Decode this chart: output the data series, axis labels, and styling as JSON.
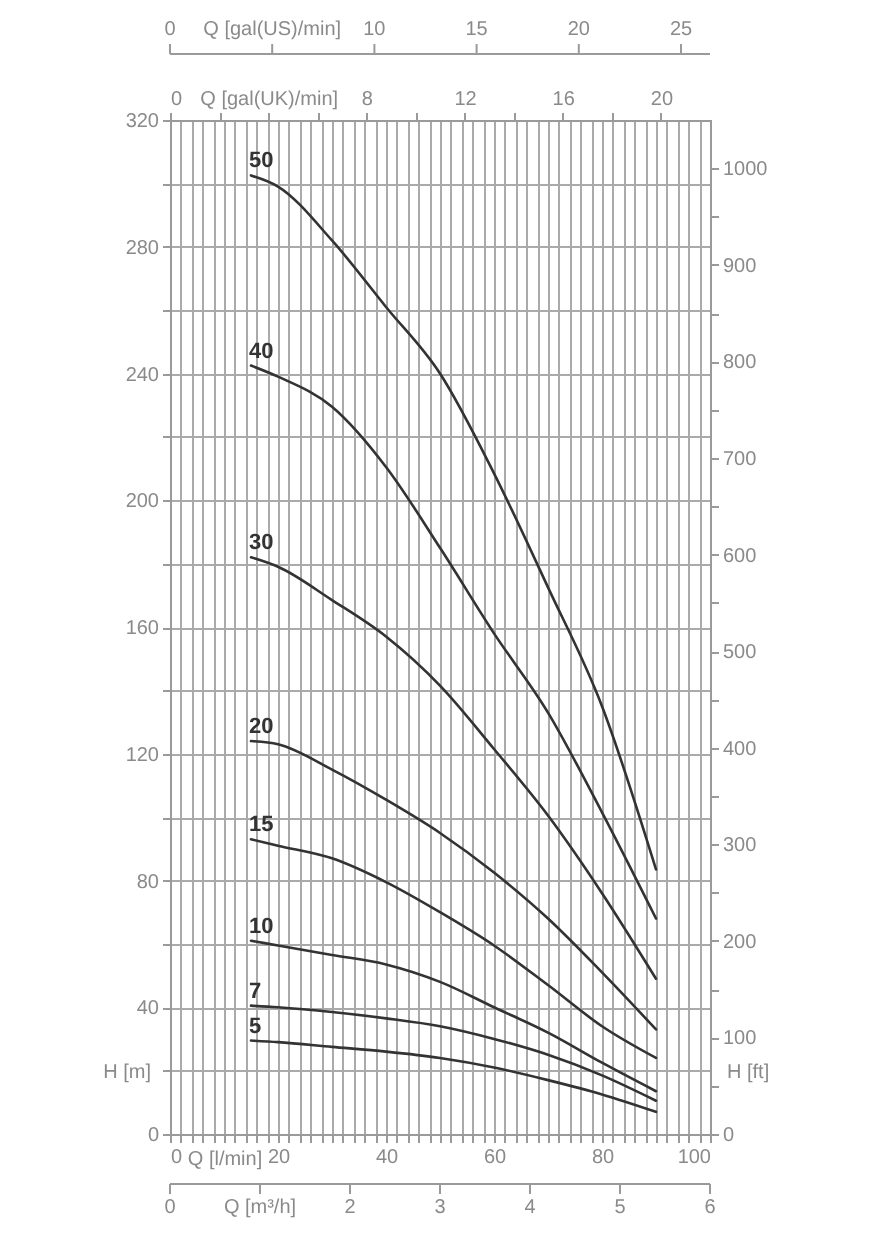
{
  "chart_data": {
    "type": "line",
    "xlabel": "Q [l/min]",
    "ylabel": "H [m]",
    "y2label": "H [ft]",
    "x2label": "Q [gal(UK)/min]",
    "x": [
      15,
      20,
      30,
      40,
      50,
      60,
      70,
      80,
      90
    ],
    "xlim": [
      0,
      100
    ],
    "xticks": [
      0,
      {
        "value": 2,
        "label": null
      },
      {
        "value": 4,
        "label": null
      },
      {
        "value": 6,
        "label": null
      },
      {
        "value": 8,
        "label": null
      },
      {
        "value": 10,
        "label": null
      },
      {
        "value": 12,
        "label": null
      },
      {
        "value": 14,
        "label": null
      },
      {
        "value": 16,
        "label": null
      },
      {
        "value": 18,
        "label": null
      },
      20,
      {
        "value": 22,
        "label": null
      },
      {
        "value": 24,
        "label": null
      },
      {
        "value": 26,
        "label": null
      },
      {
        "value": 28,
        "label": null
      },
      {
        "value": 30,
        "label": null
      },
      {
        "value": 32,
        "label": null
      },
      {
        "value": 34,
        "label": null
      },
      {
        "value": 36,
        "label": null
      },
      {
        "value": 38,
        "label": null
      },
      40,
      {
        "value": 42,
        "label": null
      },
      {
        "value": 44,
        "label": null
      },
      {
        "value": 46,
        "label": null
      },
      {
        "value": 48,
        "label": null
      },
      {
        "value": 50,
        "label": null
      },
      {
        "value": 52,
        "label": null
      },
      {
        "value": 54,
        "label": null
      },
      {
        "value": 56,
        "label": null
      },
      {
        "value": 58,
        "label": null
      },
      60,
      {
        "value": 62,
        "label": null
      },
      {
        "value": 64,
        "label": null
      },
      {
        "value": 66,
        "label": null
      },
      {
        "value": 68,
        "label": null
      },
      {
        "value": 70,
        "label": null
      },
      {
        "value": 72,
        "label": null
      },
      {
        "value": 74,
        "label": null
      },
      {
        "value": 76,
        "label": null
      },
      {
        "value": 78,
        "label": null
      },
      80,
      {
        "value": 82,
        "label": null
      },
      {
        "value": 84,
        "label": null
      },
      {
        "value": 86,
        "label": null
      },
      {
        "value": 88,
        "label": null
      },
      {
        "value": 90,
        "label": null
      },
      {
        "value": 92,
        "label": null
      },
      {
        "value": 94,
        "label": null
      },
      {
        "value": 96,
        "label": null
      },
      {
        "value": 98,
        "label": null
      },
      100
    ],
    "ylim": [
      0,
      320
    ],
    "yticks": [
      0,
      {
        "value": 20,
        "label": null
      },
      40,
      {
        "value": 60,
        "label": null
      },
      80,
      {
        "value": 100,
        "label": null
      },
      120,
      {
        "value": 140,
        "label": null
      },
      160,
      {
        "value": 180,
        "label": null
      },
      200,
      {
        "value": 220,
        "label": null
      },
      240,
      {
        "value": 260,
        "label": null
      },
      280,
      {
        "value": 300,
        "label": null
      },
      320
    ],
    "y2lim": [
      0,
      1050
    ],
    "y2ticks": [
      0,
      {
        "value": 50,
        "label": null
      },
      100,
      {
        "value": 150,
        "label": null
      },
      200,
      {
        "value": 250,
        "label": null
      },
      300,
      {
        "value": 350,
        "label": null
      },
      400,
      {
        "value": 450,
        "label": null
      },
      500,
      {
        "value": 550,
        "label": null
      },
      600,
      {
        "value": 650,
        "label": null
      },
      700,
      {
        "value": 750,
        "label": null
      },
      800,
      {
        "value": 850,
        "label": null
      },
      900,
      {
        "value": 950,
        "label": null
      },
      1000
    ],
    "x2lim": [
      0,
      22
    ],
    "x2ticks": [
      0,
      {
        "value": 2,
        "label": null
      },
      {
        "value": 4,
        "label": null
      },
      {
        "value": 6,
        "label": null
      },
      8,
      {
        "value": 10,
        "label": null
      },
      12,
      {
        "value": 14,
        "label": null
      },
      16,
      {
        "value": 18,
        "label": null
      },
      20
    ],
    "annotations": [
      "0",
      "Q [gal(US)/min]",
      "10",
      "15",
      "20",
      "25",
      "0",
      "Q [m³/h]",
      "2",
      "3",
      "4",
      "5",
      "6"
    ],
    "grid": true,
    "legend": false,
    "marker": "none",
    "line_style": "solid",
    "series": [
      {
        "name": "50",
        "color": "#333333",
        "values": [
          302.5,
          299,
          282,
          261,
          240,
          208.5,
          172.5,
          135,
          83.5
        ]
      },
      {
        "name": "40",
        "color": "#333333",
        "values": [
          242.5,
          239,
          229.5,
          210.5,
          185,
          158,
          133,
          101.5,
          68
        ]
      },
      {
        "name": "30",
        "color": "#333333",
        "values": [
          182,
          179,
          168.5,
          157,
          141.5,
          121.5,
          100.5,
          76,
          49
        ]
      },
      {
        "name": "20",
        "color": "#333333",
        "values": [
          124,
          123,
          115,
          105.5,
          95,
          82.5,
          68,
          51,
          33
        ]
      },
      {
        "name": "15",
        "color": "#333333",
        "values": [
          93,
          91,
          87,
          79.5,
          70,
          59.5,
          47,
          34,
          24
        ]
      },
      {
        "name": "10",
        "color": "#333333",
        "values": [
          61,
          59.5,
          56.5,
          53.5,
          48,
          40,
          32,
          22.5,
          13.5
        ]
      },
      {
        "name": "7",
        "color": "#333333",
        "values": [
          40.5,
          40,
          38.5,
          36.5,
          34,
          30,
          25,
          18.5,
          10.5
        ]
      },
      {
        "name": "5",
        "color": "#333333",
        "values": [
          29.5,
          29,
          27.5,
          26,
          24,
          21,
          17,
          12.5,
          7
        ]
      }
    ]
  }
}
